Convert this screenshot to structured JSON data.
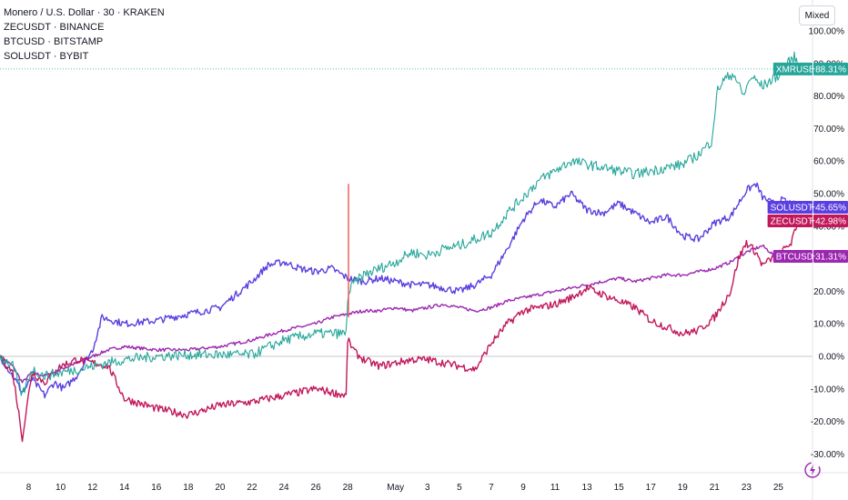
{
  "legend": {
    "main": "Monero / U.S. Dollar · 30 · KRAKEN",
    "compare": [
      "ZECUSDT · BINANCE",
      "BTCUSD · BITSTAMP",
      "SOLUSDT · BYBIT"
    ]
  },
  "scale_mode": "Mixed",
  "chart_data": {
    "type": "line",
    "title": "",
    "xlabel": "",
    "ylabel": "",
    "ylim": [
      -32,
      102
    ],
    "y_ticks": [
      "100.00%",
      "90.00%",
      "80.00%",
      "70.00%",
      "60.00%",
      "50.00%",
      "40.00%",
      "30.00%",
      "20.00%",
      "10.00%",
      "0.00%",
      "-10.00%",
      "-20.00%",
      "-30.00%"
    ],
    "y_tick_values": [
      100,
      90,
      80,
      70,
      60,
      50,
      40,
      30,
      20,
      10,
      0,
      -10,
      -20,
      -30
    ],
    "x_ticks": [
      "8",
      "10",
      "12",
      "14",
      "16",
      "18",
      "20",
      "22",
      "24",
      "26",
      "28",
      "May",
      "3",
      "5",
      "7",
      "9",
      "11",
      "13",
      "15",
      "17",
      "19",
      "21",
      "23",
      "25"
    ],
    "x_tick_days": [
      8,
      10,
      12,
      14,
      16,
      18,
      20,
      22,
      24,
      26,
      28,
      31,
      33,
      35,
      37,
      39,
      41,
      43,
      45,
      47,
      49,
      51,
      53,
      55
    ],
    "x_range_days": [
      6.2,
      56.8
    ],
    "series": [
      {
        "name": "XMRUSD",
        "color": "#26a69a",
        "last_label": "+88.31%",
        "last_value": 88.31,
        "x": [
          6.2,
          7,
          7.6,
          8.2,
          9,
          10,
          11,
          12,
          14,
          16,
          18,
          20,
          22,
          24,
          26,
          27.9,
          28.0,
          28.3,
          29,
          30,
          31,
          32,
          33,
          34,
          35,
          36,
          37,
          38,
          39,
          40,
          41,
          42,
          43,
          44,
          45,
          46,
          47,
          48,
          49,
          50,
          50.8,
          51.2,
          51.6,
          52.2,
          52.8,
          53.3,
          54,
          54.6,
          55.2,
          55.6,
          56,
          56.4
        ],
        "y": [
          0,
          -3,
          -12,
          -4,
          -6,
          -5,
          -4,
          -3,
          -1,
          0,
          0.5,
          0.5,
          0.5,
          5,
          7,
          7,
          18,
          22,
          25,
          27,
          29,
          32,
          31,
          33,
          34,
          36,
          38,
          44,
          49,
          54,
          57,
          60,
          59,
          58,
          57,
          56,
          57,
          58,
          59,
          62,
          66,
          82,
          85,
          87,
          80,
          86,
          83,
          85,
          87,
          90,
          92,
          88.31
        ]
      },
      {
        "name": "SOLUSDT",
        "color": "#5b3fe0",
        "last_label": "+45.65%",
        "last_value": 45.65,
        "x": [
          6.2,
          7,
          7.6,
          8.2,
          9,
          9.6,
          10.2,
          11,
          12,
          12.6,
          14,
          16,
          18,
          20,
          22,
          23,
          24,
          25,
          26,
          27,
          28,
          29,
          30,
          31,
          32,
          33,
          34,
          35,
          36,
          37,
          38,
          39,
          40,
          41,
          42,
          43,
          44,
          45,
          46,
          47,
          48,
          49,
          50,
          51,
          52,
          53,
          53.6,
          54,
          54.6,
          55.2,
          55.8,
          56.4
        ],
        "y": [
          0,
          -6,
          -11,
          -7,
          -12,
          -8,
          -10,
          -6,
          2,
          12,
          10,
          11,
          13,
          15,
          23,
          28,
          29,
          27,
          26,
          27,
          24,
          23,
          24,
          23,
          22,
          22,
          21,
          20,
          22,
          25,
          33,
          42,
          48,
          46,
          50,
          45,
          44,
          47,
          44,
          41,
          43,
          37,
          36,
          41,
          43,
          51,
          53,
          49,
          47,
          48,
          47,
          45.65
        ]
      },
      {
        "name": "ZECUSDT",
        "color": "#c2185b",
        "last_label": "+42.98%",
        "last_value": 42.98,
        "x": [
          6.2,
          7,
          7.6,
          8.2,
          9,
          10,
          11,
          12,
          13,
          14,
          16,
          18,
          20,
          22,
          24,
          26,
          27.9,
          28.0,
          28.5,
          29,
          30,
          31,
          32,
          33,
          34,
          35,
          36,
          37,
          38,
          39,
          40,
          41,
          42,
          43,
          44,
          45,
          46,
          47,
          48,
          49,
          50,
          51,
          52,
          52.5,
          53,
          53.6,
          54,
          54.6,
          55.2,
          55.8,
          56.4
        ],
        "y": [
          0,
          -5,
          -25,
          -5,
          -8,
          -3,
          -1,
          -2,
          -3,
          -13,
          -16,
          -18,
          -15,
          -14,
          -12,
          -10,
          -12,
          5,
          1,
          -1,
          -3,
          -2,
          -1,
          -1,
          -2,
          -3,
          -4,
          4,
          10,
          14,
          15,
          16,
          18,
          21,
          19,
          17,
          15,
          11,
          9,
          7,
          8,
          12,
          20,
          30,
          35,
          32,
          28,
          30,
          32,
          35,
          42.98
        ]
      },
      {
        "name": "BTCUSD",
        "color": "#9c27b0",
        "last_label": "+31.31%",
        "last_value": 31.31,
        "x": [
          6.2,
          7,
          7.6,
          8.2,
          9,
          10,
          11,
          12,
          13,
          14,
          16,
          18,
          20,
          22,
          24,
          26,
          27,
          28,
          29,
          30,
          31,
          32,
          33,
          34,
          35,
          36,
          37,
          38,
          39,
          40,
          41,
          42,
          43,
          44,
          45,
          46,
          47,
          48,
          49,
          50,
          51,
          52,
          53,
          54,
          55,
          55.6,
          56.4
        ],
        "y": [
          0,
          -3,
          -8,
          -5,
          -6,
          -4,
          -2,
          0,
          2,
          3,
          2,
          2,
          3,
          5,
          8,
          10,
          12,
          13,
          14,
          14,
          15,
          14,
          15,
          16,
          15,
          14,
          15,
          17,
          18,
          19,
          20,
          21,
          22,
          23,
          24,
          23,
          24,
          25,
          25,
          26,
          27,
          29,
          32,
          34,
          30,
          31,
          31.31
        ]
      }
    ]
  }
}
